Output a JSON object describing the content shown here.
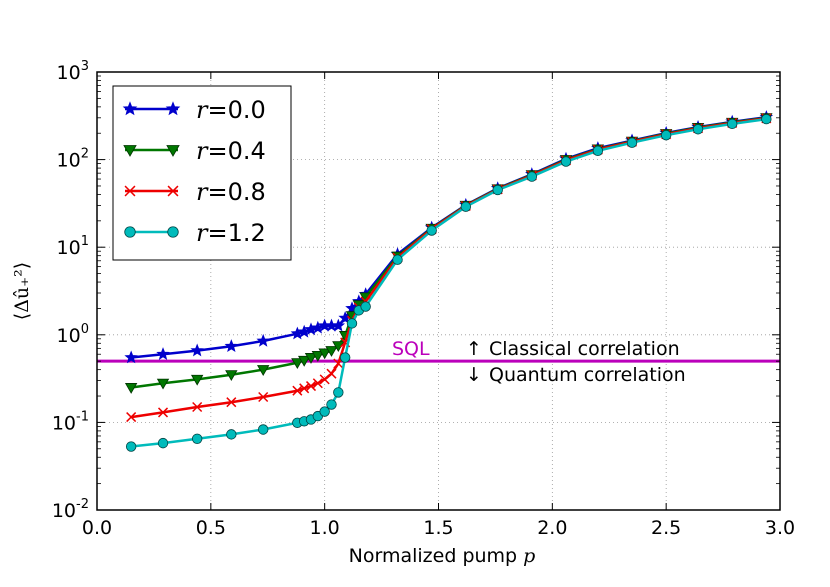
{
  "chart_data": {
    "type": "line",
    "xlabel": "Normalized pump p",
    "ylabel": "⟨Δû₊²⟩",
    "xlim": [
      0.0,
      3.0
    ],
    "ylim": [
      0.01,
      1000
    ],
    "yscale": "log",
    "grid": true,
    "legend_placement": "top-left",
    "x_ticks": [
      "0.0",
      "0.5",
      "1.0",
      "1.5",
      "2.0",
      "2.5",
      "3.0"
    ],
    "y_ticks": [
      {
        "base": "10",
        "exp": "-2"
      },
      {
        "base": "10",
        "exp": "-1"
      },
      {
        "base": "10",
        "exp": "0"
      },
      {
        "base": "10",
        "exp": "1"
      },
      {
        "base": "10",
        "exp": "2"
      },
      {
        "base": "10",
        "exp": "3"
      }
    ],
    "series": [
      {
        "name": "r=0.0",
        "symbol": "r",
        "value": "=0.0",
        "color": "#0000cc",
        "marker": "star",
        "x": [
          0.15,
          0.29,
          0.44,
          0.59,
          0.73,
          0.88,
          0.91,
          0.94,
          0.97,
          1.0,
          1.03,
          1.06,
          1.09,
          1.12,
          1.15,
          1.18,
          1.32,
          1.47,
          1.62,
          1.76,
          1.91,
          2.06,
          2.2,
          2.35,
          2.5,
          2.64,
          2.79,
          2.94
        ],
        "y": [
          0.55,
          0.6,
          0.66,
          0.74,
          0.85,
          1.03,
          1.08,
          1.15,
          1.2,
          1.27,
          1.27,
          1.27,
          1.55,
          2.0,
          2.4,
          2.9,
          8.3,
          16.7,
          30.3,
          47.0,
          68.0,
          102,
          135,
          165,
          201,
          235,
          270,
          305
        ]
      },
      {
        "name": "r=0.4",
        "symbol": "r",
        "value": "=0.4",
        "color": "#007700",
        "marker": "triangle-down",
        "x": [
          0.15,
          0.29,
          0.44,
          0.59,
          0.73,
          0.88,
          0.91,
          0.94,
          0.97,
          1.0,
          1.03,
          1.06,
          1.09,
          1.12,
          1.15,
          1.18,
          1.32,
          1.47,
          1.62,
          1.76,
          1.91,
          2.06,
          2.2,
          2.35,
          2.5,
          2.64,
          2.79,
          2.94
        ],
        "y": [
          0.25,
          0.28,
          0.31,
          0.35,
          0.4,
          0.48,
          0.51,
          0.55,
          0.58,
          0.62,
          0.66,
          0.75,
          0.98,
          1.65,
          2.2,
          2.7,
          7.9,
          16.4,
          30.0,
          46.3,
          67.0,
          100,
          132,
          162,
          198,
          232,
          266,
          300
        ]
      },
      {
        "name": "r=0.8",
        "symbol": "r",
        "value": "=0.8",
        "color": "#ee0000",
        "marker": "x",
        "x": [
          0.15,
          0.29,
          0.44,
          0.59,
          0.73,
          0.88,
          0.91,
          0.94,
          0.97,
          1.0,
          1.03,
          1.06,
          1.09,
          1.12,
          1.15,
          1.18,
          1.32,
          1.47,
          1.62,
          1.76,
          1.91,
          2.06,
          2.2,
          2.35,
          2.5,
          2.64,
          2.79,
          2.94
        ],
        "y": [
          0.115,
          0.13,
          0.15,
          0.17,
          0.195,
          0.23,
          0.245,
          0.26,
          0.28,
          0.31,
          0.36,
          0.47,
          0.82,
          1.45,
          2.05,
          2.4,
          7.6,
          16.1,
          29.6,
          45.7,
          66.0,
          98,
          130,
          160,
          195,
          228,
          262,
          296
        ]
      },
      {
        "name": "r=1.2",
        "symbol": "r",
        "value": "=1.2",
        "color": "#00bbbb",
        "marker": "circle",
        "x": [
          0.15,
          0.29,
          0.44,
          0.59,
          0.73,
          0.88,
          0.91,
          0.94,
          0.97,
          1.0,
          1.03,
          1.06,
          1.09,
          1.12,
          1.15,
          1.18,
          1.32,
          1.47,
          1.62,
          1.76,
          1.91,
          2.06,
          2.2,
          2.35,
          2.5,
          2.64,
          2.79,
          2.94
        ],
        "y": [
          0.053,
          0.058,
          0.065,
          0.073,
          0.083,
          0.099,
          0.103,
          0.108,
          0.118,
          0.133,
          0.16,
          0.22,
          0.55,
          1.35,
          1.9,
          2.1,
          7.2,
          15.5,
          29.0,
          45.0,
          64.0,
          95,
          126,
          156,
          190,
          222,
          256,
          290
        ]
      }
    ],
    "reference_line": {
      "label": "SQL",
      "y": 0.5,
      "color": "#bb00bb"
    },
    "annotations": {
      "classical": {
        "arrow": "↑",
        "text": "Classical correlation"
      },
      "quantum": {
        "arrow": "↓",
        "text": "Quantum correlation"
      }
    }
  }
}
